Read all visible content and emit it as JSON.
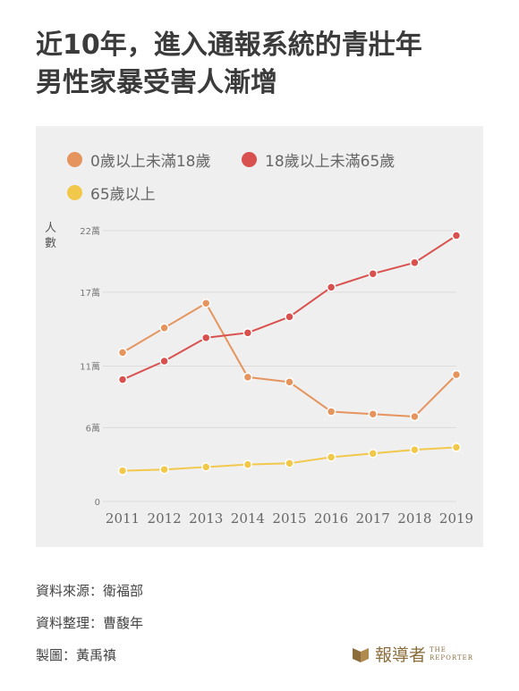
{
  "title": {
    "line1": "近10年，進入通報系統的青壯年",
    "line2": "男性家暴受害人漸增"
  },
  "chart_data": {
    "type": "line",
    "ylabel": [
      "人",
      "數"
    ],
    "x": [
      "2011",
      "2012",
      "2013",
      "2014",
      "2015",
      "2016",
      "2017",
      "2018",
      "2019"
    ],
    "yticks": [
      {
        "value": 0,
        "label": "0"
      },
      {
        "value": 60000,
        "label": "6萬"
      },
      {
        "value": 110000,
        "label": "11萬"
      },
      {
        "value": 170000,
        "label": "17萬"
      },
      {
        "value": 220000,
        "label": "22萬"
      }
    ],
    "ylim": [
      0,
      220000
    ],
    "grid": true,
    "legend_position": "top-left",
    "series": [
      {
        "name": "0歲以上未滿18歲",
        "color": "#e6945e",
        "values": [
          121000,
          141000,
          161000,
          101000,
          97000,
          73000,
          71000,
          69000,
          103000
        ]
      },
      {
        "name": "18歲以上未滿65歲",
        "color": "#d9514e",
        "values": [
          99000,
          114000,
          133000,
          137000,
          150000,
          174000,
          185000,
          194000,
          216000
        ]
      },
      {
        "name": "65歲以上",
        "color": "#f2c84b",
        "values": [
          25000,
          26000,
          28000,
          30000,
          31000,
          36000,
          39000,
          42000,
          44000
        ]
      }
    ]
  },
  "footer": {
    "source": "資料來源：衛福部",
    "compiler": "資料整理：曹馥年",
    "designer": "製圖：黃禹禛"
  },
  "logo": {
    "name": "報導者",
    "sub1": "THE",
    "sub2": "REPORTER",
    "color": "#8a6d3b"
  }
}
